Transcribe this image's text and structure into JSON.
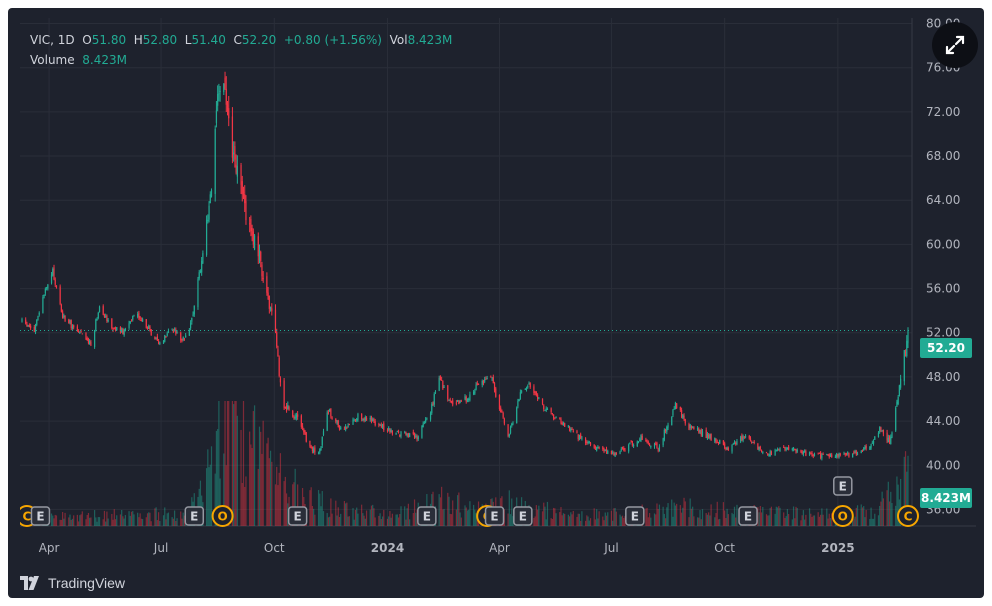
{
  "legend": {
    "symbol": "VIC",
    "interval": "1D",
    "open_label": "O",
    "open": "51.80",
    "high_label": "H",
    "high": "52.80",
    "low_label": "L",
    "low": "51.40",
    "close_label": "C",
    "close": "52.20",
    "change": "+0.80 (+1.56%)",
    "vol_label": "Vol",
    "vol": "8.423M",
    "volume_label": "Volume",
    "volume_value": "8.423M"
  },
  "badges": {
    "last_price": "52.20",
    "last_volume": "8.423M"
  },
  "brand": {
    "name": "TradingView"
  },
  "icons": {
    "expand": "expand-arrows-icon",
    "logo": "tradingview-logo-icon"
  },
  "colors": {
    "up": "#22ab94",
    "down": "#f23645",
    "event": "#f7a600",
    "background": "#1e222d"
  },
  "chart_data": {
    "type": "candlestick",
    "symbol": "VIC",
    "interval": "1D",
    "y_range": [
      34.5,
      80.5
    ],
    "y_ticks": [
      "80.00",
      "76.00",
      "72.00",
      "68.00",
      "64.00",
      "60.00",
      "56.00",
      "52.00",
      "48.00",
      "44.00",
      "40.00",
      "36.00"
    ],
    "x_range": [
      "2023-03-10",
      "2025-02-27"
    ],
    "x_ticks": [
      {
        "date": "2023-04-01",
        "label": "Apr",
        "bold": false
      },
      {
        "date": "2023-07-01",
        "label": "Jul",
        "bold": false
      },
      {
        "date": "2023-10-01",
        "label": "Oct",
        "bold": false
      },
      {
        "date": "2024-01-01",
        "label": "2024",
        "bold": true
      },
      {
        "date": "2024-04-01",
        "label": "Apr",
        "bold": false
      },
      {
        "date": "2024-07-01",
        "label": "Jul",
        "bold": false
      },
      {
        "date": "2024-10-01",
        "label": "Oct",
        "bold": false
      },
      {
        "date": "2025-01-01",
        "label": "2025",
        "bold": true
      }
    ],
    "last_close": 52.2,
    "last_volume_m": 8.423,
    "price_path": [
      [
        "2023-03-10",
        53.0
      ],
      [
        "2023-03-20",
        52.2
      ],
      [
        "2023-03-28",
        55.5
      ],
      [
        "2023-04-04",
        57.5
      ],
      [
        "2023-04-12",
        53.5
      ],
      [
        "2023-04-25",
        52.0
      ],
      [
        "2023-05-05",
        51.0
      ],
      [
        "2023-05-12",
        54.5
      ],
      [
        "2023-05-22",
        52.5
      ],
      [
        "2023-06-01",
        52.0
      ],
      [
        "2023-06-10",
        54.0
      ],
      [
        "2023-06-20",
        52.5
      ],
      [
        "2023-06-30",
        51.0
      ],
      [
        "2023-07-08",
        52.5
      ],
      [
        "2023-07-18",
        51.5
      ],
      [
        "2023-07-24",
        52.0
      ],
      [
        "2023-08-05",
        60.0
      ],
      [
        "2023-08-12",
        66.5
      ],
      [
        "2023-08-17",
        74.0
      ],
      [
        "2023-08-21",
        75.0
      ],
      [
        "2023-08-28",
        68.0
      ],
      [
        "2023-09-05",
        64.5
      ],
      [
        "2023-09-14",
        60.5
      ],
      [
        "2023-09-22",
        57.5
      ],
      [
        "2023-10-02",
        51.5
      ],
      [
        "2023-10-08",
        45.5
      ],
      [
        "2023-10-18",
        44.5
      ],
      [
        "2023-10-28",
        42.0
      ],
      [
        "2023-11-06",
        41.0
      ],
      [
        "2023-11-14",
        45.0
      ],
      [
        "2023-11-25",
        43.0
      ],
      [
        "2023-12-08",
        44.5
      ],
      [
        "2023-12-20",
        44.0
      ],
      [
        "2024-01-05",
        43.0
      ],
      [
        "2024-01-25",
        42.5
      ],
      [
        "2024-02-05",
        45.0
      ],
      [
        "2024-02-12",
        48.0
      ],
      [
        "2024-02-22",
        45.5
      ],
      [
        "2024-03-05",
        46.0
      ],
      [
        "2024-03-15",
        47.5
      ],
      [
        "2024-03-25",
        48.0
      ],
      [
        "2024-04-02",
        45.0
      ],
      [
        "2024-04-08",
        42.5
      ],
      [
        "2024-04-18",
        46.5
      ],
      [
        "2024-04-25",
        47.5
      ],
      [
        "2024-05-08",
        45.0
      ],
      [
        "2024-05-20",
        44.0
      ],
      [
        "2024-06-05",
        42.5
      ],
      [
        "2024-06-20",
        41.5
      ],
      [
        "2024-07-05",
        41.0
      ],
      [
        "2024-07-25",
        42.5
      ],
      [
        "2024-08-08",
        41.5
      ],
      [
        "2024-08-22",
        45.5
      ],
      [
        "2024-09-02",
        43.5
      ],
      [
        "2024-09-20",
        42.5
      ],
      [
        "2024-10-05",
        41.5
      ],
      [
        "2024-10-18",
        42.8
      ],
      [
        "2024-11-02",
        41.0
      ],
      [
        "2024-11-20",
        41.5
      ],
      [
        "2024-12-10",
        41.0
      ],
      [
        "2024-12-25",
        40.8
      ],
      [
        "2025-01-10",
        41.0
      ],
      [
        "2025-01-25",
        41.5
      ],
      [
        "2025-02-05",
        43.5
      ],
      [
        "2025-02-12",
        42.0
      ],
      [
        "2025-02-18",
        45.5
      ],
      [
        "2025-02-22",
        48.5
      ],
      [
        "2025-02-27",
        52.2
      ]
    ],
    "volume_path": [
      [
        "2023-03-10",
        1.0
      ],
      [
        "2023-05-01",
        1.2
      ],
      [
        "2023-07-20",
        1.5
      ],
      [
        "2023-08-05",
        4.0
      ],
      [
        "2023-08-20",
        14.0
      ],
      [
        "2023-09-01",
        12.0
      ],
      [
        "2023-09-25",
        8.0
      ],
      [
        "2023-10-10",
        5.0
      ],
      [
        "2023-10-30",
        3.5
      ],
      [
        "2023-11-20",
        2.0
      ],
      [
        "2024-01-10",
        1.5
      ],
      [
        "2024-02-12",
        3.0
      ],
      [
        "2024-03-20",
        2.0
      ],
      [
        "2024-04-10",
        2.8
      ],
      [
        "2024-05-20",
        1.5
      ],
      [
        "2024-07-10",
        1.4
      ],
      [
        "2024-08-25",
        2.2
      ],
      [
        "2024-10-20",
        1.6
      ],
      [
        "2024-12-20",
        1.4
      ],
      [
        "2025-01-30",
        1.8
      ],
      [
        "2025-02-20",
        4.5
      ],
      [
        "2025-02-27",
        8.423
      ]
    ],
    "events": [
      {
        "type": "C",
        "date": "2023-03-14"
      },
      {
        "type": "E",
        "date": "2023-03-25"
      },
      {
        "type": "E",
        "date": "2023-07-28"
      },
      {
        "type": "O",
        "date": "2023-08-20"
      },
      {
        "type": "E",
        "date": "2023-10-20"
      },
      {
        "type": "E",
        "date": "2024-02-02"
      },
      {
        "type": "C",
        "date": "2024-03-22"
      },
      {
        "type": "E",
        "date": "2024-03-28"
      },
      {
        "type": "E",
        "date": "2024-04-20"
      },
      {
        "type": "E",
        "date": "2024-07-20"
      },
      {
        "type": "E",
        "date": "2024-10-20"
      },
      {
        "type": "E",
        "date": "2025-01-05",
        "raised": true
      },
      {
        "type": "O",
        "date": "2025-01-05"
      },
      {
        "type": "C",
        "date": "2025-02-27"
      }
    ]
  }
}
